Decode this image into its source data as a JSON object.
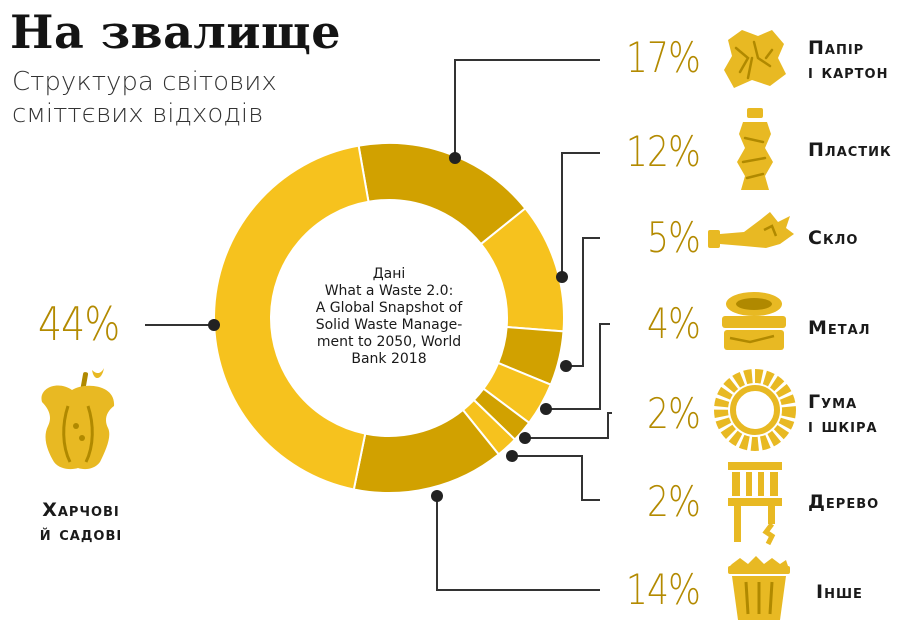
{
  "header": {
    "title": "На звалище",
    "subtitle": "Структура світових сміттєвих відходів"
  },
  "source": {
    "line1": "Дані",
    "line2": "What a Waste 2.0:",
    "line3": "A Global Snapshot of",
    "line4": "Solid Waste Manage-",
    "line5": "ment to 2050, World",
    "line6": "Bank 2018"
  },
  "colors": {
    "light": "#f6c21e",
    "dark": "#d1a100",
    "icon": "#e8b923",
    "icon_dark": "#b08900",
    "label": "#b38a00",
    "line": "#333333"
  },
  "chart_data": {
    "type": "pie",
    "variant": "donut",
    "title": "Структура світових сміттєвих відходів",
    "unit": "%",
    "slices": [
      {
        "name": "Папір і картон",
        "value": 17,
        "label": "17%",
        "label_line1": "Папір",
        "label_line2": "і картон",
        "icon": "crumpled-paper-icon",
        "shade": "dark"
      },
      {
        "name": "Пластик",
        "value": 12,
        "label": "12%",
        "label_line1": "Пластик",
        "label_line2": "",
        "icon": "plastic-bottle-icon",
        "shade": "light"
      },
      {
        "name": "Скло",
        "value": 5,
        "label": "5%",
        "label_line1": "Скло",
        "label_line2": "",
        "icon": "broken-bottle-icon",
        "shade": "dark"
      },
      {
        "name": "Метал",
        "value": 4,
        "label": "4%",
        "label_line1": "Метал",
        "label_line2": "",
        "icon": "tin-can-icon",
        "shade": "light"
      },
      {
        "name": "Гума і шкіра",
        "value": 2,
        "label": "2%",
        "label_line1": "Гума",
        "label_line2": "і шкіра",
        "icon": "tire-icon",
        "shade": "dark"
      },
      {
        "name": "Дерево",
        "value": 2,
        "label": "2%",
        "label_line1": "Дерево",
        "label_line2": "",
        "icon": "wooden-chair-icon",
        "shade": "light"
      },
      {
        "name": "Інше",
        "value": 14,
        "label": "14%",
        "label_line1": "Інше",
        "label_line2": "",
        "icon": "trash-bin-icon",
        "shade": "dark"
      },
      {
        "name": "Харчові й садові",
        "value": 44,
        "label": "44%",
        "label_line1": "Харчові",
        "label_line2": "й садові",
        "icon": "apple-core-icon",
        "shade": "light"
      }
    ]
  }
}
